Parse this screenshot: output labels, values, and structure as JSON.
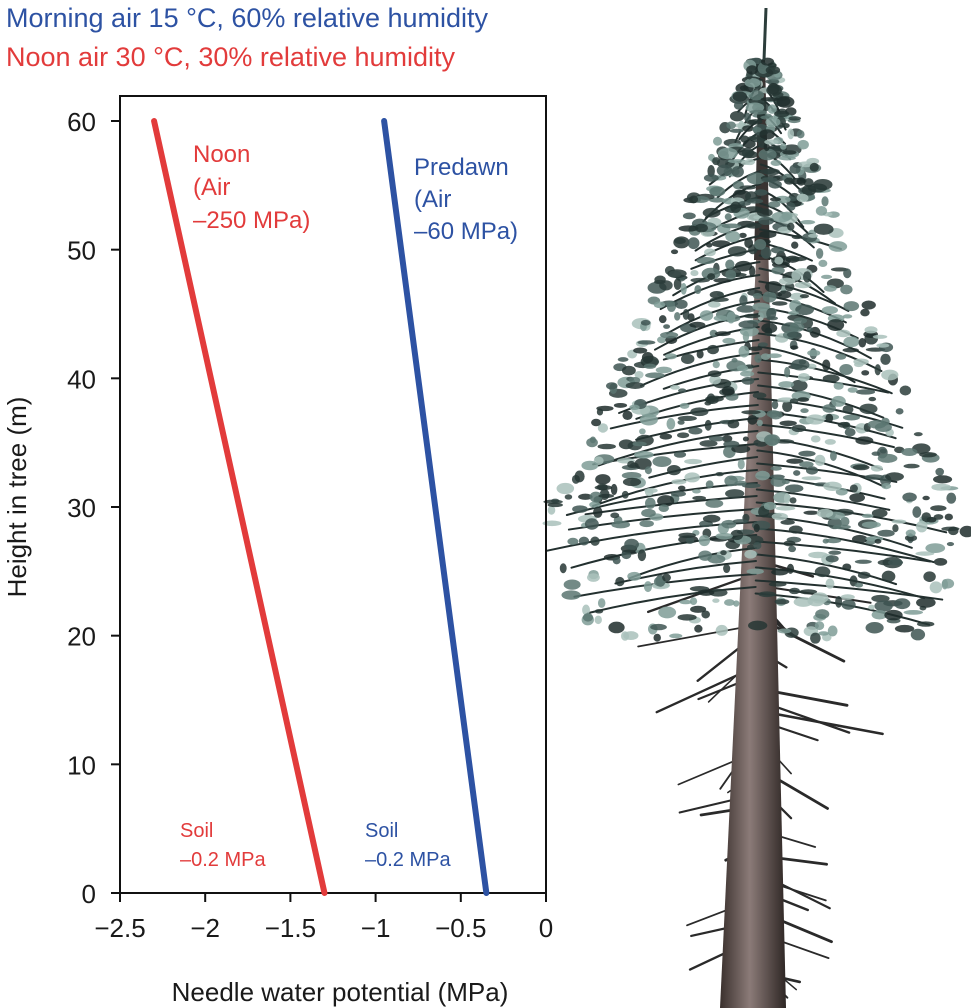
{
  "legend": [
    {
      "text": "Morning air 15 °C, 60% relative humidity",
      "color": "#2d52a3"
    },
    {
      "text": "Noon air 30 °C, 30% relative humidity",
      "color": "#e23b3b"
    }
  ],
  "chart_data": {
    "type": "line",
    "xlabel": "Needle water potential (MPa)",
    "ylabel": "Height in tree (m)",
    "xlim": [
      -2.5,
      0
    ],
    "ylim": [
      0,
      60
    ],
    "xticks": [
      -2.5,
      -2,
      -1.5,
      -1,
      -0.5,
      0
    ],
    "xtick_labels": [
      "−2.5",
      "−2",
      "−1.5",
      "−1",
      "−0.5",
      "0"
    ],
    "yticks": [
      0,
      10,
      20,
      30,
      40,
      50,
      60
    ],
    "ytick_labels": [
      "0",
      "10",
      "20",
      "30",
      "40",
      "50",
      "60"
    ],
    "grid": false,
    "series": [
      {
        "name": "Noon",
        "color": "#e23b3b",
        "points": [
          [
            -1.3,
            0
          ],
          [
            -2.3,
            60
          ]
        ]
      },
      {
        "name": "Predawn",
        "color": "#2d52a3",
        "points": [
          [
            -0.35,
            0
          ],
          [
            -0.95,
            60
          ]
        ]
      }
    ],
    "annotations": [
      {
        "lines": [
          "Noon",
          "(Air",
          "–250 MPa)"
        ],
        "color": "#e23b3b"
      },
      {
        "lines": [
          "Predawn",
          "(Air",
          "–60 MPa)"
        ],
        "color": "#2d52a3"
      },
      {
        "lines": [
          "Soil",
          "–0.2 MPa"
        ],
        "color": "#e23b3b"
      },
      {
        "lines": [
          "Soil",
          "–0.2 MPa"
        ],
        "color": "#2d52a3"
      }
    ]
  },
  "illustration": {
    "icon": "conifer-tree-icon"
  }
}
